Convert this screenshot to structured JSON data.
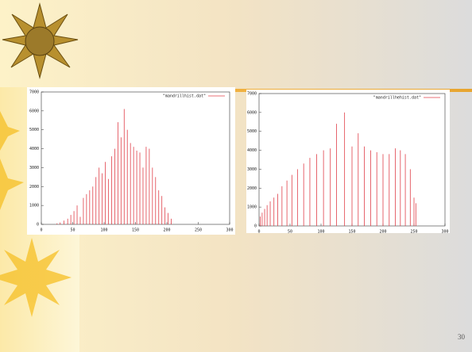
{
  "chart_data": [
    {
      "type": "impulses",
      "legend": "\"mandrillhist.dat\"",
      "color": "#e0404a",
      "x": [
        25,
        30,
        36,
        42,
        47,
        52,
        57,
        62,
        67,
        72,
        77,
        82,
        87,
        92,
        97,
        102,
        107,
        112,
        117,
        122,
        127,
        132,
        137,
        142,
        147,
        152,
        157,
        162,
        167,
        172,
        177,
        182,
        187,
        192,
        197,
        202,
        207
      ],
      "values": [
        50,
        100,
        200,
        300,
        500,
        700,
        1000,
        400,
        1400,
        1600,
        1800,
        2000,
        2500,
        3000,
        2700,
        3300,
        2400,
        3600,
        4000,
        5400,
        4600,
        6100,
        5000,
        4300,
        4100,
        3900,
        3800,
        3000,
        4100,
        4000,
        3000,
        2500,
        1800,
        1500,
        900,
        600,
        300
      ],
      "xlim": [
        0,
        300
      ],
      "xticks": [
        0,
        50,
        100,
        150,
        200,
        250,
        300
      ],
      "ylim": [
        0,
        7000
      ],
      "yticks": [
        0,
        1000,
        2000,
        3000,
        4000,
        5000,
        6000,
        7000
      ]
    },
    {
      "type": "impulses",
      "legend": "\"mandrillhehist.dat\"",
      "color": "#e0404a",
      "x": [
        2,
        5,
        9,
        13,
        18,
        24,
        30,
        37,
        45,
        53,
        62,
        72,
        82,
        93,
        104,
        115,
        125,
        138,
        150,
        160,
        170,
        180,
        190,
        200,
        210,
        220,
        228,
        236,
        244,
        250,
        253
      ],
      "values": [
        500,
        700,
        900,
        1100,
        1300,
        1500,
        1700,
        2100,
        2400,
        2700,
        3000,
        3300,
        3600,
        3800,
        4000,
        4100,
        5400,
        6000,
        4200,
        4900,
        4200,
        4000,
        3900,
        3800,
        3800,
        4100,
        4000,
        3800,
        3000,
        1500,
        1200
      ],
      "xlim": [
        0,
        300
      ],
      "xticks": [
        0,
        50,
        100,
        150,
        200,
        250,
        300
      ],
      "ylim": [
        0,
        7000
      ],
      "yticks": [
        0,
        1000,
        2000,
        3000,
        4000,
        5000,
        6000,
        7000
      ]
    }
  ],
  "page_number": "30"
}
